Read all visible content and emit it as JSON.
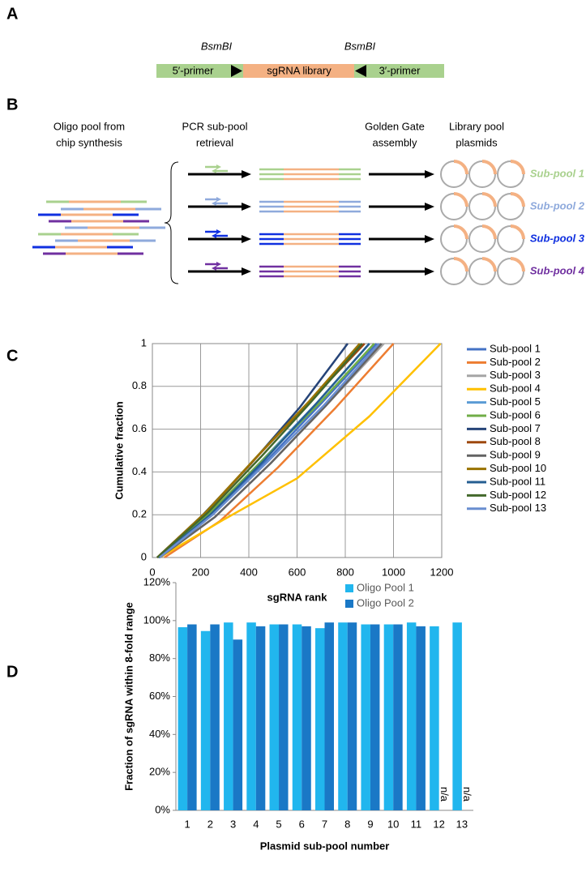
{
  "panels": [
    "A",
    "B",
    "C",
    "D"
  ],
  "panel_a": {
    "site_left": "BsmBI",
    "site_right": "BsmBI",
    "primer_5": "5′-primer",
    "library": "sgRNA library",
    "primer_3": "3′-primer"
  },
  "panel_b": {
    "steps": [
      [
        "Oligo pool from",
        "chip synthesis"
      ],
      [
        "PCR sub-pool",
        "retrieval"
      ],
      [
        "Golden Gate",
        "assembly"
      ],
      [
        "Library pool",
        "plasmids"
      ]
    ],
    "subpools": [
      "Sub-pool 1",
      "Sub-pool 2",
      "Sub-pool 3",
      "Sub-pool 4"
    ]
  },
  "chart_data": [
    {
      "type": "line",
      "xlabel": "sgRNA rank",
      "ylabel": "Cumulative fraction",
      "xlim": [
        0,
        1200
      ],
      "xticks": [
        0,
        200,
        400,
        600,
        800,
        1000,
        1200
      ],
      "ylim": [
        0,
        1
      ],
      "yticks": [
        0,
        0.2,
        0.4,
        0.6,
        0.8,
        1
      ],
      "grid": true,
      "legend": "right",
      "series": [
        {
          "name": "Sub-pool 1",
          "color": "#4472c4",
          "x": [
            30,
            250,
            480,
            700,
            930
          ],
          "values": [
            0,
            0.2,
            0.46,
            0.72,
            1
          ]
        },
        {
          "name": "Sub-pool 2",
          "color": "#ed7d31",
          "x": [
            50,
            280,
            520,
            760,
            1000
          ],
          "values": [
            0,
            0.17,
            0.42,
            0.7,
            1
          ]
        },
        {
          "name": "Sub-pool 3",
          "color": "#a5a5a5",
          "x": [
            30,
            260,
            490,
            720,
            960
          ],
          "values": [
            0,
            0.19,
            0.44,
            0.71,
            1
          ]
        },
        {
          "name": "Sub-pool 4",
          "color": "#ffc000",
          "x": [
            30,
            300,
            600,
            900,
            1195
          ],
          "values": [
            0,
            0.18,
            0.37,
            0.66,
            1
          ]
        },
        {
          "name": "Sub-pool 5",
          "color": "#5b9bd5",
          "x": [
            25,
            240,
            460,
            680,
            900
          ],
          "values": [
            0,
            0.2,
            0.46,
            0.72,
            1
          ]
        },
        {
          "name": "Sub-pool 6",
          "color": "#70ad47",
          "x": [
            20,
            240,
            470,
            700,
            920
          ],
          "values": [
            0,
            0.21,
            0.47,
            0.73,
            1
          ]
        },
        {
          "name": "Sub-pool 7",
          "color": "#264478",
          "x": [
            20,
            210,
            410,
            610,
            810
          ],
          "values": [
            0,
            0.2,
            0.44,
            0.7,
            1
          ]
        },
        {
          "name": "Sub-pool 8",
          "color": "#9e480e",
          "x": [
            20,
            230,
            450,
            670,
            880
          ],
          "values": [
            0,
            0.22,
            0.49,
            0.75,
            1
          ]
        },
        {
          "name": "Sub-pool 9",
          "color": "#636363",
          "x": [
            30,
            260,
            490,
            720,
            950
          ],
          "values": [
            0,
            0.19,
            0.44,
            0.71,
            1
          ]
        },
        {
          "name": "Sub-pool 10",
          "color": "#997300",
          "x": [
            20,
            220,
            440,
            650,
            860
          ],
          "values": [
            0,
            0.21,
            0.48,
            0.73,
            1
          ]
        },
        {
          "name": "Sub-pool 11",
          "color": "#255e91",
          "x": [
            25,
            240,
            460,
            680,
            900
          ],
          "values": [
            0,
            0.2,
            0.45,
            0.72,
            1
          ]
        },
        {
          "name": "Sub-pool 12",
          "color": "#43682b",
          "x": [
            20,
            230,
            450,
            660,
            870
          ],
          "values": [
            0,
            0.21,
            0.47,
            0.73,
            1
          ]
        },
        {
          "name": "Sub-pool 13",
          "color": "#698ed0",
          "x": [
            30,
            250,
            480,
            710,
            940
          ],
          "values": [
            0,
            0.2,
            0.45,
            0.71,
            1
          ]
        }
      ]
    },
    {
      "type": "bar",
      "xlabel": "Plasmid sub-pool number",
      "ylabel": "Fraction of sgRNA within 8-fold range",
      "categories": [
        "1",
        "2",
        "3",
        "4",
        "5",
        "6",
        "7",
        "8",
        "9",
        "10",
        "11",
        "12",
        "13"
      ],
      "ylim": [
        0,
        120
      ],
      "yticks": [
        {
          "value": 0,
          "label": "0%"
        },
        {
          "value": 20,
          "label": "20%"
        },
        {
          "value": 40,
          "label": "40%"
        },
        {
          "value": 60,
          "label": "60%"
        },
        {
          "value": 80,
          "label": "80%"
        },
        {
          "value": 100,
          "label": "100%"
        },
        {
          "value": 120,
          "label": "120%"
        }
      ],
      "legend": "top-right",
      "series": [
        {
          "name": "Oligo Pool 1",
          "color": "#21b6ee",
          "values": [
            96.5,
            94.5,
            99,
            99,
            98,
            98,
            96,
            99,
            98,
            98,
            99,
            97,
            99
          ]
        },
        {
          "name": "Oligo Pool 2",
          "color": "#1a78c6",
          "values": [
            98,
            98,
            90,
            97,
            98,
            97,
            99,
            99,
            98,
            98,
            97,
            null,
            null
          ],
          "value_labels": [
            null,
            null,
            null,
            null,
            null,
            null,
            null,
            null,
            null,
            null,
            null,
            "n/a",
            "n/a"
          ]
        }
      ]
    }
  ]
}
